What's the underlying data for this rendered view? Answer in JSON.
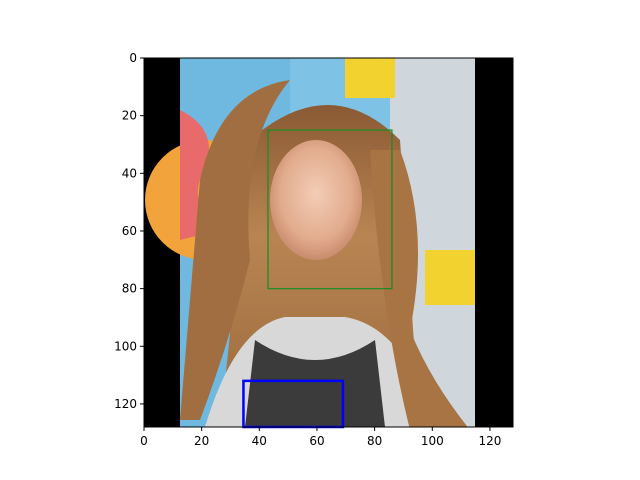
{
  "figure": {
    "image_extent": {
      "x": [
        0,
        128
      ],
      "y": [
        0,
        128
      ]
    },
    "x_ticks": [
      0,
      20,
      40,
      60,
      80,
      100,
      120
    ],
    "y_ticks": [
      0,
      20,
      40,
      60,
      80,
      100,
      120
    ],
    "image_content": {
      "subject": "woman-face-portrait",
      "black_padding": [
        {
          "x0": 0,
          "x1": 12.5,
          "y0": 0,
          "y1": 128
        },
        {
          "x0": 114.5,
          "x1": 128,
          "y0": 0,
          "y1": 128
        }
      ]
    },
    "boxes": [
      {
        "name": "face-box",
        "color": "#228b22",
        "x0": 43,
        "y0": 25,
        "x1": 86,
        "y1": 80
      },
      {
        "name": "lower-box",
        "color": "#0000ff",
        "x0": 34.5,
        "y0": 112,
        "x1": 69,
        "y1": 128
      }
    ]
  }
}
